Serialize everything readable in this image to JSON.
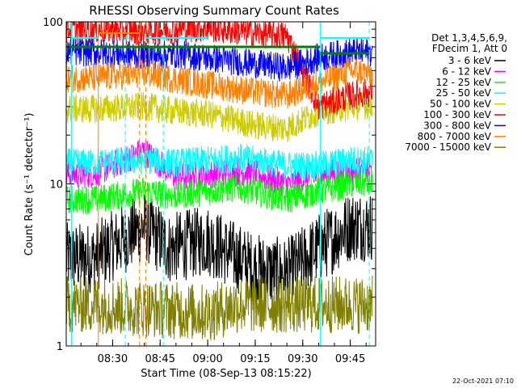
{
  "chart_data": {
    "type": "line",
    "title": "RHESSI Observing Summary Count Rates",
    "xlabel": "Start Time (08-Sep-13 08:15:22)",
    "ylabel": "Count Rate (s⁻¹ detector⁻¹)",
    "y_scale": "log",
    "ylim": [
      1,
      100
    ],
    "xlim": [
      "08:15:22",
      "09:53:00"
    ],
    "x_ticks": [
      "08:30",
      "08:45",
      "09:00",
      "09:15",
      "09:30",
      "09:45"
    ],
    "y_ticks": [
      "1",
      "10",
      "100"
    ],
    "grid": false,
    "legend": {
      "placement": "right",
      "header": [
        "Det 1,3,4,5,6,9,",
        "FDecim 1, Att 0"
      ],
      "entries": [
        {
          "label": "3 - 6 keV",
          "color": "#000000"
        },
        {
          "label": "6 - 12 keV",
          "color": "#ff00ff"
        },
        {
          "label": "12 - 25 keV",
          "color": "#00ff00"
        },
        {
          "label": "25 - 50 keV",
          "color": "#00ffff"
        },
        {
          "label": "50 - 100 keV",
          "color": "#cccc00"
        },
        {
          "label": "100 - 300 keV",
          "color": "#ff0000"
        },
        {
          "label": "300 - 800 keV",
          "color": "#0000ff"
        },
        {
          "label": "800 - 7000 keV",
          "color": "#ff8000"
        },
        {
          "label": "7000 - 15000 keV",
          "color": "#808000"
        }
      ]
    },
    "series": [
      {
        "name": "3 - 6 keV",
        "color": "#000000",
        "x": [
          "08:15",
          "08:24",
          "08:40",
          "08:48",
          "09:00",
          "09:15",
          "09:25",
          "09:35",
          "09:45",
          "09:52"
        ],
        "y": [
          3.5,
          3.5,
          5.5,
          4.0,
          4.5,
          3.0,
          2.8,
          4.0,
          5.5,
          5.5
        ]
      },
      {
        "name": "6 - 12 keV",
        "color": "#ff00ff",
        "x": [
          "08:15",
          "08:24",
          "08:40",
          "08:50",
          "09:00",
          "09:12",
          "09:25",
          "09:35",
          "09:45",
          "09:52"
        ],
        "y": [
          11.5,
          11.5,
          16,
          11,
          11.5,
          12,
          10,
          11.5,
          12,
          12
        ]
      },
      {
        "name": "12 - 25 keV",
        "color": "#00ff00",
        "x": [
          "08:15",
          "08:24",
          "08:40",
          "08:50",
          "09:00",
          "09:10",
          "09:25",
          "09:35",
          "09:45",
          "09:52"
        ],
        "y": [
          8,
          8,
          9,
          8.5,
          9,
          9.5,
          8,
          9,
          10,
          10
        ]
      },
      {
        "name": "25 - 50 keV",
        "color": "#00ffff",
        "x": [
          "08:15",
          "08:24",
          "08:40",
          "08:50",
          "09:00",
          "09:10",
          "09:25",
          "09:35",
          "09:45",
          "09:52"
        ],
        "y": [
          13.5,
          13.5,
          14,
          13.5,
          14,
          14.5,
          13,
          13,
          14,
          14
        ]
      },
      {
        "name": "50 - 100 keV",
        "color": "#cccc00",
        "x": [
          "08:15",
          "08:24",
          "08:40",
          "08:50",
          "09:00",
          "09:15",
          "09:25",
          "09:35",
          "09:45",
          "09:52"
        ],
        "y": [
          29,
          29,
          30,
          28,
          27,
          23,
          22,
          28,
          30,
          31
        ]
      },
      {
        "name": "100 - 300 keV",
        "color": "#ff0000",
        "x": [
          "08:15",
          "08:24",
          "08:40",
          "08:50",
          "09:00",
          "09:15",
          "09:25",
          "09:35",
          "09:45",
          "09:52"
        ],
        "y": [
          90,
          90,
          88,
          90,
          92,
          85,
          82,
          30,
          35,
          37
        ]
      },
      {
        "name": "300 - 800 keV",
        "color": "#0000ff",
        "x": [
          "08:15",
          "08:24",
          "08:40",
          "08:50",
          "09:00",
          "09:15",
          "09:25",
          "09:35",
          "09:45",
          "09:52"
        ],
        "y": [
          65,
          65,
          62,
          63,
          60,
          55,
          52,
          60,
          65,
          65
        ]
      },
      {
        "name": "800 - 7000 keV",
        "color": "#ff8000",
        "x": [
          "08:15",
          "08:24",
          "08:40",
          "08:50",
          "09:00",
          "09:15",
          "09:25",
          "09:35",
          "09:45",
          "09:52"
        ],
        "y": [
          45,
          45,
          48,
          44,
          41,
          37,
          35,
          42,
          50,
          48
        ]
      },
      {
        "name": "7000 - 15000 keV",
        "color": "#808000",
        "x": [
          "08:15",
          "08:24",
          "09:00",
          "09:10",
          "09:35",
          "09:45",
          "09:52"
        ],
        "y": [
          1.8,
          1.8,
          1.6,
          1.8,
          1.8,
          1.8,
          1.8
        ]
      }
    ],
    "annotations": [
      {
        "text": "S",
        "x": "08:26",
        "color": "#ff8000"
      },
      {
        "text": "N",
        "x": "08:34",
        "color": "#00ffff"
      },
      {
        "text": "F",
        "x": "08:41",
        "color": "#00aa00"
      },
      {
        "text": "D",
        "x": "08:43",
        "color": "#00aa00"
      }
    ],
    "footer_date": "22-Oct-2021 07:10"
  }
}
